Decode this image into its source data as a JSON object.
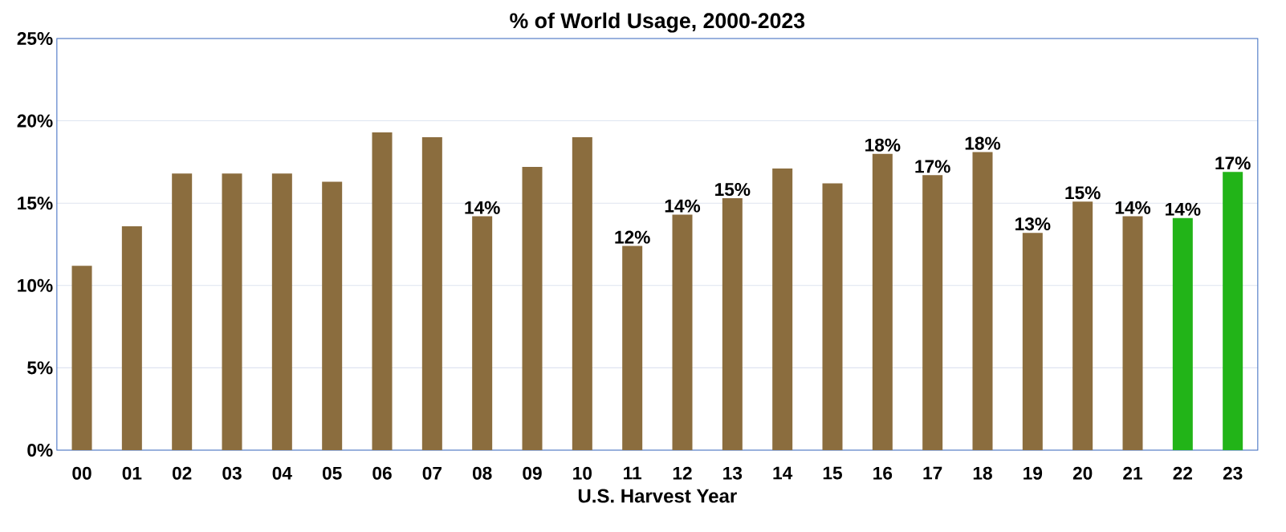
{
  "chart_data": {
    "type": "bar",
    "title": "% of World Usage, 2000-2023",
    "xlabel": "U.S. Harvest Year",
    "categories": [
      "00",
      "01",
      "02",
      "03",
      "04",
      "05",
      "06",
      "07",
      "08",
      "09",
      "10",
      "11",
      "12",
      "13",
      "14",
      "15",
      "16",
      "17",
      "18",
      "19",
      "20",
      "21",
      "22",
      "23"
    ],
    "values": [
      11.2,
      13.6,
      16.8,
      16.8,
      16.8,
      16.3,
      19.3,
      19.0,
      14.2,
      17.2,
      19.0,
      12.4,
      14.3,
      15.3,
      17.1,
      16.2,
      18.0,
      16.7,
      18.1,
      13.2,
      15.1,
      14.2,
      14.1,
      16.9
    ],
    "colors": [
      "#8b6d3e",
      "#8b6d3e",
      "#8b6d3e",
      "#8b6d3e",
      "#8b6d3e",
      "#8b6d3e",
      "#8b6d3e",
      "#8b6d3e",
      "#8b6d3e",
      "#8b6d3e",
      "#8b6d3e",
      "#8b6d3e",
      "#8b6d3e",
      "#8b6d3e",
      "#8b6d3e",
      "#8b6d3e",
      "#8b6d3e",
      "#8b6d3e",
      "#8b6d3e",
      "#8b6d3e",
      "#8b6d3e",
      "#8b6d3e",
      "#22b418",
      "#22b418"
    ],
    "value_labels": [
      null,
      null,
      null,
      null,
      null,
      null,
      null,
      null,
      "14%",
      null,
      null,
      "12%",
      "14%",
      "15%",
      null,
      null,
      "18%",
      "17%",
      "18%",
      "13%",
      "15%",
      "14%",
      "14%",
      "17%"
    ],
    "ylim": [
      0,
      25
    ],
    "yticks": [
      {
        "value": 0,
        "label": "0%"
      },
      {
        "value": 5,
        "label": "5%"
      },
      {
        "value": 10,
        "label": "10%"
      },
      {
        "value": 15,
        "label": "15%"
      },
      {
        "value": 20,
        "label": "20%"
      },
      {
        "value": 25,
        "label": "25%"
      }
    ],
    "grid": "y"
  }
}
